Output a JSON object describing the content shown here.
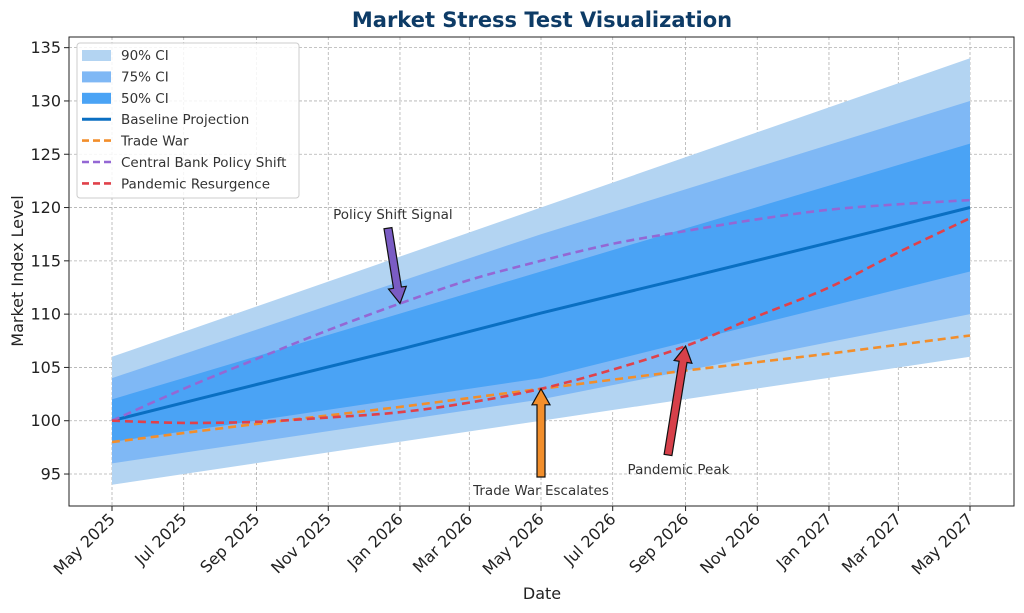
{
  "chart_data": {
    "type": "line",
    "title": "Market Stress Test Visualization",
    "xlabel": "Date",
    "ylabel": "Market Index Level",
    "x_type": "date",
    "x_start": "2025-05-01",
    "x_end": "2027-05-01",
    "x_ticks": [
      "May 2025",
      "Jul 2025",
      "Sep 2025",
      "Nov 2025",
      "Jan 2026",
      "Mar 2026",
      "May 2026",
      "Jul 2026",
      "Sep 2026",
      "Nov 2026",
      "Jan 2027",
      "Mar 2027",
      "May 2027"
    ],
    "ylim": [
      92,
      136
    ],
    "y_ticks": [
      95,
      100,
      105,
      110,
      115,
      120,
      125,
      130,
      135
    ],
    "grid": true,
    "legend_placement": "top-left",
    "colors": {
      "title": "#0d3b66",
      "ci90": "#b3d4f2",
      "ci75": "#7fb8f5",
      "ci50": "#4aa3f5",
      "baseline": "#0a6fc2",
      "trade_war": "#f28e2b",
      "policy": "#9467d4",
      "pandemic": "#e0414a",
      "arrow_policy": "#7a5cc4",
      "arrow_trade": "#f28e2b",
      "arrow_pandemic": "#d7404a"
    },
    "legend": [
      {
        "label": "90% CI",
        "kind": "band",
        "color": "#b3d4f2"
      },
      {
        "label": "75% CI",
        "kind": "band",
        "color": "#7fb8f5"
      },
      {
        "label": "50% CI",
        "kind": "band",
        "color": "#4aa3f5"
      },
      {
        "label": "Baseline Projection",
        "kind": "solid",
        "color": "#0a6fc2"
      },
      {
        "label": "Trade War",
        "kind": "dashed",
        "color": "#f28e2b"
      },
      {
        "label": "Central Bank Policy Shift",
        "kind": "dashed",
        "color": "#9467d4"
      },
      {
        "label": "Pandemic Resurgence",
        "kind": "dashed",
        "color": "#e0414a"
      }
    ],
    "bands": [
      {
        "name": "90% CI",
        "x": [
          "2025-05-01",
          "2026-05-01",
          "2027-05-01"
        ],
        "lower": [
          94,
          100,
          106
        ],
        "upper": [
          106,
          120,
          134
        ]
      },
      {
        "name": "75% CI",
        "x": [
          "2025-05-01",
          "2026-05-01",
          "2027-05-01"
        ],
        "lower": [
          96,
          102,
          110
        ],
        "upper": [
          104,
          117.5,
          130
        ]
      },
      {
        "name": "50% CI",
        "x": [
          "2025-05-01",
          "2026-05-01",
          "2027-05-01"
        ],
        "lower": [
          98,
          104,
          114
        ],
        "upper": [
          102,
          114,
          126
        ]
      }
    ],
    "series": [
      {
        "name": "Baseline Projection",
        "x": [
          "2025-05-01",
          "2025-09-01",
          "2026-01-01",
          "2026-05-01",
          "2026-09-01",
          "2027-01-01",
          "2027-05-01"
        ],
        "values": [
          100,
          103.4,
          106.7,
          110.1,
          113.4,
          116.7,
          120
        ]
      },
      {
        "name": "Trade War",
        "x": [
          "2025-05-01",
          "2025-09-01",
          "2026-01-01",
          "2026-05-01",
          "2026-09-01",
          "2027-01-01",
          "2027-05-01"
        ],
        "values": [
          98,
          99.7,
          101.3,
          103,
          104.7,
          106.3,
          108
        ]
      },
      {
        "name": "Central Bank Policy Shift",
        "x": [
          "2025-05-01",
          "2025-07-01",
          "2025-09-01",
          "2025-11-01",
          "2026-01-01",
          "2026-03-01",
          "2026-05-01",
          "2026-07-01",
          "2026-09-01",
          "2026-11-01",
          "2027-01-01",
          "2027-03-01",
          "2027-05-01"
        ],
        "values": [
          100,
          103,
          105.8,
          108.5,
          111,
          113.2,
          115,
          116.6,
          117.8,
          118.9,
          119.8,
          120.3,
          120.7
        ]
      },
      {
        "name": "Pandemic Resurgence",
        "x": [
          "2025-05-01",
          "2025-07-01",
          "2025-09-01",
          "2025-11-01",
          "2026-01-01",
          "2026-03-01",
          "2026-05-01",
          "2026-07-01",
          "2026-09-01",
          "2026-11-01",
          "2027-01-01",
          "2027-03-01",
          "2027-05-01"
        ],
        "values": [
          100,
          99.8,
          99.9,
          100.3,
          100.8,
          101.7,
          103,
          104.8,
          107,
          109.8,
          112.5,
          115.8,
          119
        ]
      }
    ],
    "annotations": [
      {
        "text": "Policy Shift Signal",
        "target_x": "2026-01-01",
        "target_y": 111,
        "text_x": "2025-12-26",
        "text_y": 119,
        "arrow_color": "#7a5cc4"
      },
      {
        "text": "Trade War Escalates",
        "target_x": "2026-05-01",
        "target_y": 103,
        "text_x": "2026-05-01",
        "text_y": 93,
        "arrow_color": "#f28e2b"
      },
      {
        "text": "Pandemic Peak",
        "target_x": "2026-09-01",
        "target_y": 107,
        "text_x": "2026-08-26",
        "text_y": 95,
        "arrow_color": "#d7404a"
      }
    ]
  }
}
